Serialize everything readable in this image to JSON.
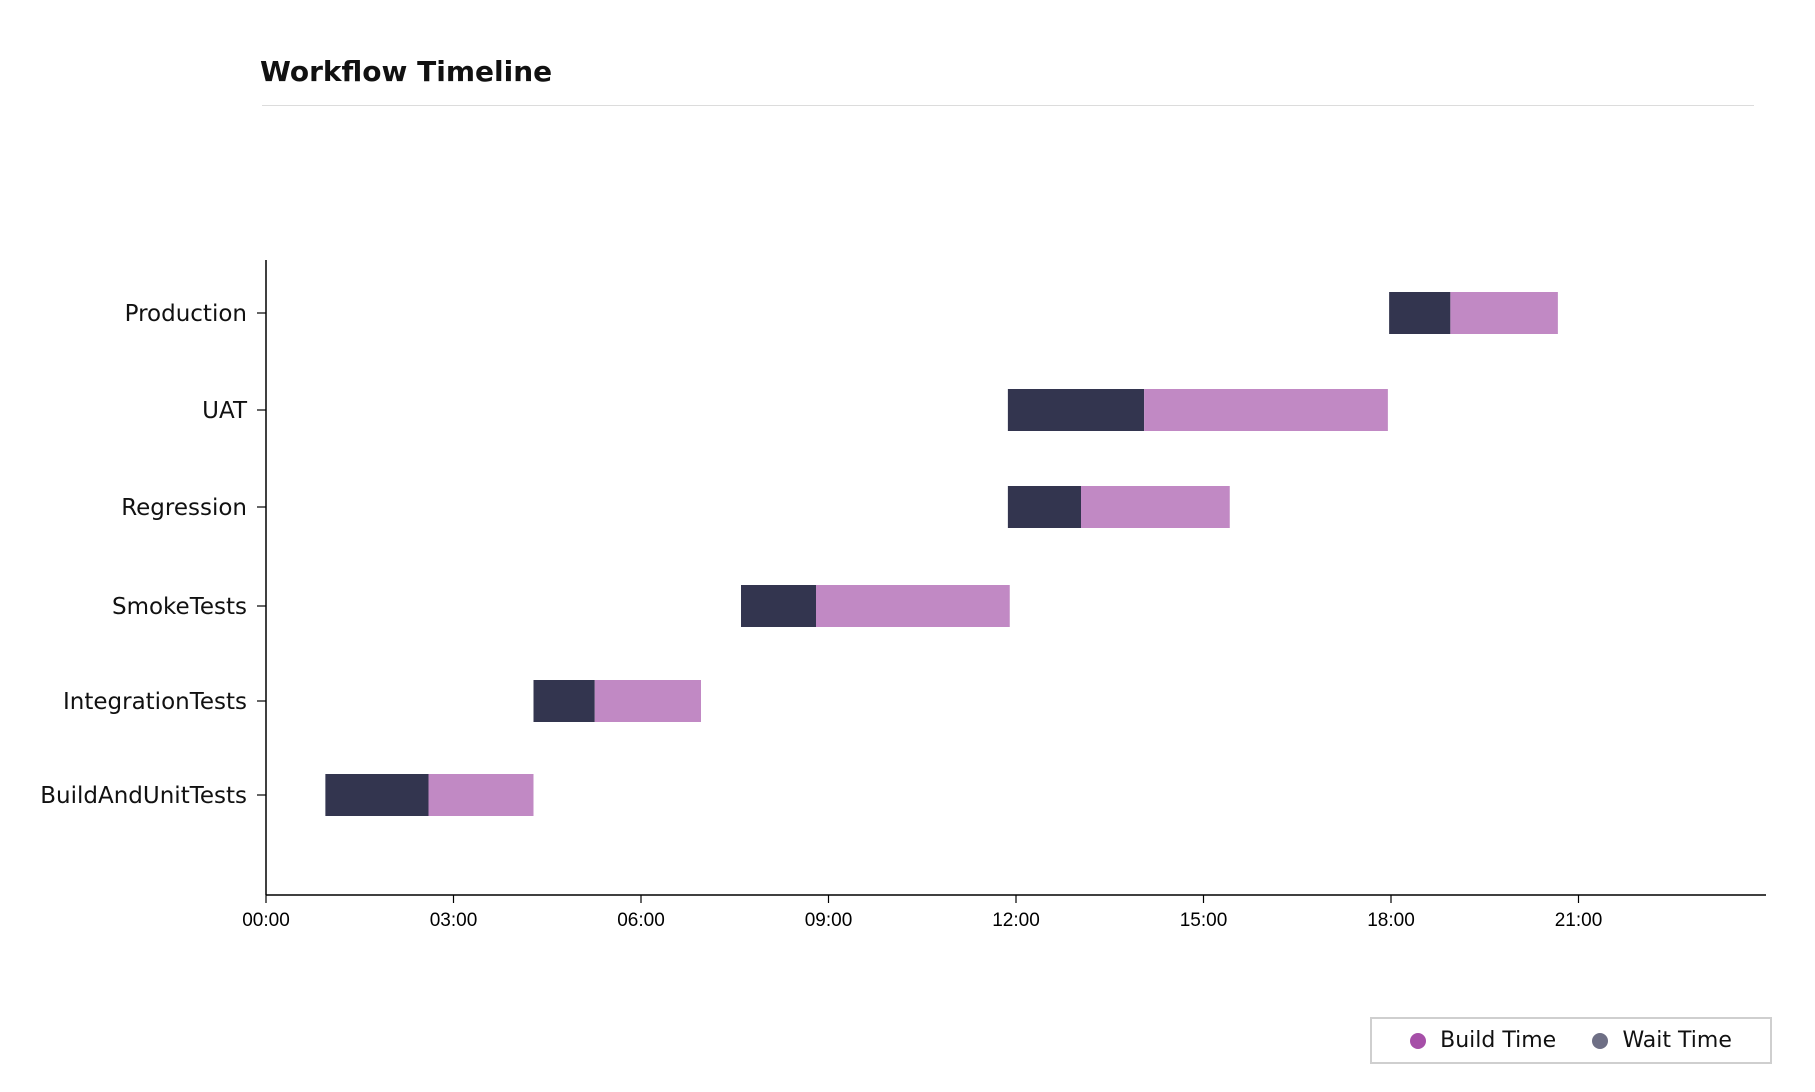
{
  "title": "Workflow Timeline",
  "chart_data": {
    "type": "bar",
    "orientation": "horizontal",
    "stacked": true,
    "categories": [
      "BuildAndUnitTests",
      "IntegrationTests",
      "SmokeTests",
      "Regression",
      "UAT",
      "Production"
    ],
    "x_unit": "hours",
    "xlim": [
      0,
      24
    ],
    "x_ticks": [
      0,
      3,
      6,
      9,
      12,
      15,
      18,
      21
    ],
    "x_tick_labels": [
      "00:00",
      "03:00",
      "06:00",
      "09:00",
      "12:00",
      "15:00",
      "18:00",
      "21:00"
    ],
    "start": [
      0.95,
      4.28,
      7.6,
      11.87,
      11.87,
      17.97
    ],
    "series": [
      {
        "name": "Wait Time",
        "color": "#33354f",
        "values": [
          1.65,
          0.98,
          1.2,
          1.17,
          2.18,
          0.98
        ]
      },
      {
        "name": "Build Time",
        "color": "#c189c4",
        "values": [
          1.68,
          1.7,
          3.1,
          2.38,
          3.9,
          1.72
        ]
      }
    ],
    "legend": {
      "position": "bottom-right",
      "items": [
        {
          "label": "Build Time",
          "color": "#a64fa8"
        },
        {
          "label": "Wait Time",
          "color": "#6e6f85"
        }
      ]
    },
    "grid": false
  }
}
